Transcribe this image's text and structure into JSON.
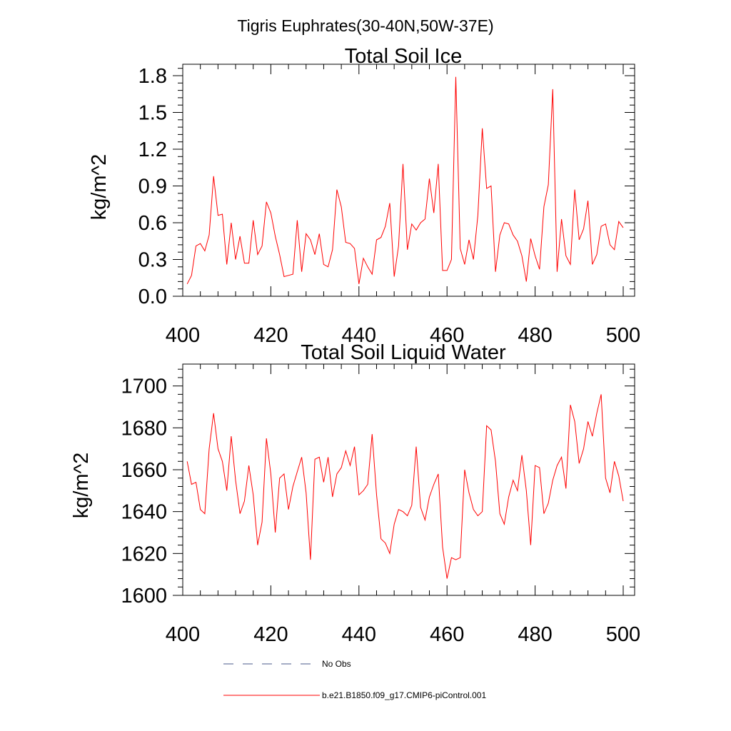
{
  "suptitle": "Tigris Euphrates(30-40N,50W-37E)",
  "colors": {
    "model_line": "#ff0000",
    "obs_line": "#4a5a8a",
    "axis": "#000000"
  },
  "legend": {
    "obs_label": "No Obs",
    "model_label": "b.e21.B1850.f09_g17.CMIP6-piControl.001"
  },
  "chart_data": [
    {
      "type": "line",
      "title": "Total Soil Ice",
      "ylabel": "kg/m^2",
      "xlabel": "",
      "xlim": [
        400,
        500
      ],
      "ylim": [
        0,
        1.8
      ],
      "xticks": [
        400,
        420,
        440,
        460,
        480,
        500
      ],
      "xtick_labels": [
        "400",
        "420",
        "440",
        "460",
        "480",
        "500"
      ],
      "yticks": [
        0,
        0.3,
        0.6,
        0.9,
        1.2,
        1.5,
        1.8
      ],
      "ytick_labels": [
        "0.0",
        "0.3",
        "0.6",
        "0.9",
        "1.2",
        "1.5",
        "1.8"
      ],
      "grid": false,
      "series": [
        {
          "name": "b.e21.B1850.f09_g17.CMIP6-piControl.001",
          "x": [
            401,
            402,
            403,
            404,
            405,
            406,
            407,
            408,
            409,
            410,
            411,
            412,
            413,
            414,
            415,
            416,
            417,
            418,
            419,
            420,
            421,
            422,
            423,
            424,
            425,
            426,
            427,
            428,
            429,
            430,
            431,
            432,
            433,
            434,
            435,
            436,
            437,
            438,
            439,
            440,
            441,
            442,
            443,
            444,
            445,
            446,
            447,
            448,
            449,
            450,
            451,
            452,
            453,
            454,
            455,
            456,
            457,
            458,
            459,
            460,
            461,
            462,
            463,
            464,
            465,
            466,
            467,
            468,
            469,
            470,
            471,
            472,
            473,
            474,
            475,
            476,
            477,
            478,
            479,
            480,
            481,
            482,
            483,
            484,
            485,
            486,
            487,
            488,
            489,
            490,
            491,
            492,
            493,
            494,
            495,
            496,
            497,
            498,
            499,
            500
          ],
          "values": [
            0.1,
            0.17,
            0.41,
            0.43,
            0.37,
            0.5,
            0.98,
            0.66,
            0.67,
            0.26,
            0.6,
            0.3,
            0.49,
            0.27,
            0.27,
            0.62,
            0.34,
            0.41,
            0.77,
            0.68,
            0.49,
            0.34,
            0.16,
            0.17,
            0.18,
            0.62,
            0.2,
            0.51,
            0.46,
            0.34,
            0.51,
            0.26,
            0.24,
            0.38,
            0.87,
            0.73,
            0.44,
            0.43,
            0.39,
            0.1,
            0.31,
            0.24,
            0.18,
            0.46,
            0.48,
            0.57,
            0.76,
            0.16,
            0.41,
            1.08,
            0.38,
            0.59,
            0.54,
            0.6,
            0.63,
            0.96,
            0.68,
            1.08,
            0.21,
            0.21,
            0.3,
            1.79,
            0.39,
            0.26,
            0.46,
            0.3,
            0.66,
            1.37,
            0.88,
            0.9,
            0.2,
            0.5,
            0.6,
            0.59,
            0.5,
            0.45,
            0.33,
            0.12,
            0.47,
            0.33,
            0.22,
            0.73,
            0.91,
            1.69,
            0.2,
            0.63,
            0.33,
            0.26,
            0.87,
            0.46,
            0.55,
            0.78,
            0.26,
            0.34,
            0.57,
            0.59,
            0.42,
            0.38,
            0.61,
            0.56
          ]
        }
      ]
    },
    {
      "type": "line",
      "title": "Total Soil Liquid Water",
      "ylabel": "kg/m^2",
      "xlabel": "",
      "xlim": [
        400,
        500
      ],
      "ylim": [
        1600,
        1705
      ],
      "xticks": [
        400,
        420,
        440,
        460,
        480,
        500
      ],
      "xtick_labels": [
        "400",
        "420",
        "440",
        "460",
        "480",
        "500"
      ],
      "yticks": [
        1600,
        1620,
        1640,
        1660,
        1680,
        1700
      ],
      "ytick_labels": [
        "1600",
        "1620",
        "1640",
        "1660",
        "1680",
        "1700"
      ],
      "grid": false,
      "series": [
        {
          "name": "b.e21.B1850.f09_g17.CMIP6-piControl.001",
          "x": [
            401,
            402,
            403,
            404,
            405,
            406,
            407,
            408,
            409,
            410,
            411,
            412,
            413,
            414,
            415,
            416,
            417,
            418,
            419,
            420,
            421,
            422,
            423,
            424,
            425,
            426,
            427,
            428,
            429,
            430,
            431,
            432,
            433,
            434,
            435,
            436,
            437,
            438,
            439,
            440,
            441,
            442,
            443,
            444,
            445,
            446,
            447,
            448,
            449,
            450,
            451,
            452,
            453,
            454,
            455,
            456,
            457,
            458,
            459,
            460,
            461,
            462,
            463,
            464,
            465,
            466,
            467,
            468,
            469,
            470,
            471,
            472,
            473,
            474,
            475,
            476,
            477,
            478,
            479,
            480,
            481,
            482,
            483,
            484,
            485,
            486,
            487,
            488,
            489,
            490,
            491,
            492,
            493,
            494,
            495,
            496,
            497,
            498,
            499,
            500
          ],
          "values": [
            1664,
            1653,
            1654,
            1641,
            1639,
            1670,
            1687,
            1670,
            1664,
            1650,
            1676,
            1655,
            1639,
            1645,
            1662,
            1648,
            1624,
            1635,
            1675,
            1658,
            1630,
            1656,
            1658,
            1641,
            1652,
            1659,
            1666,
            1649,
            1617,
            1665,
            1666,
            1654,
            1666,
            1647,
            1658,
            1661,
            1669,
            1662,
            1671,
            1648,
            1650,
            1653,
            1677,
            1648,
            1627,
            1625,
            1620,
            1634,
            1641,
            1640,
            1638,
            1643,
            1671,
            1642,
            1636,
            1647,
            1653,
            1658,
            1623,
            1608,
            1618,
            1617,
            1618,
            1660,
            1649,
            1641,
            1638,
            1640,
            1681,
            1679,
            1664,
            1639,
            1634,
            1647,
            1655,
            1650,
            1667,
            1650,
            1624,
            1662,
            1661,
            1639,
            1644,
            1655,
            1662,
            1666,
            1651,
            1691,
            1683,
            1663,
            1670,
            1683,
            1676,
            1687,
            1696,
            1656,
            1649,
            1664,
            1657,
            1645
          ]
        }
      ]
    }
  ]
}
